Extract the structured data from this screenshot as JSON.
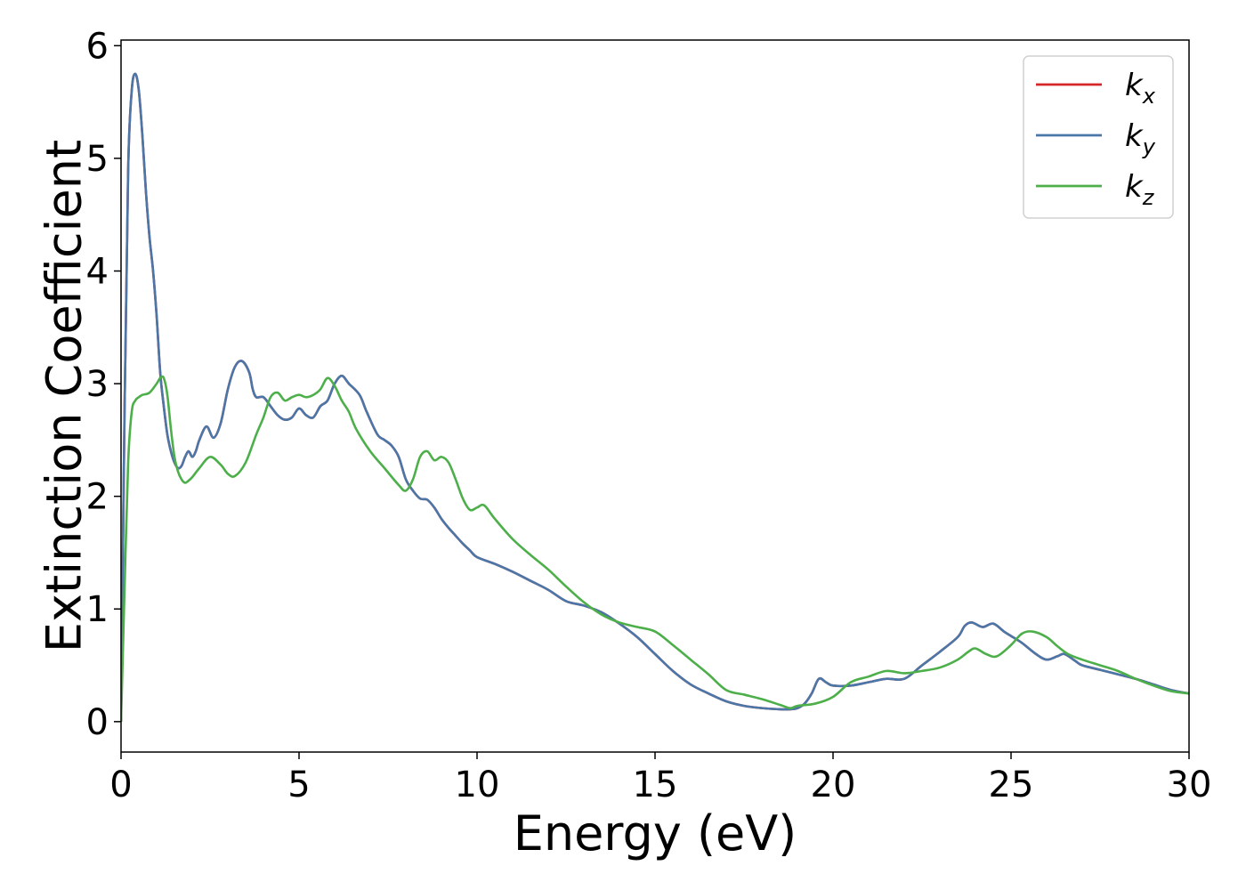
{
  "chart_data": {
    "type": "line",
    "xlabel": "Energy (eV)",
    "ylabel": "Extinction Coefficient",
    "xlim": [
      0,
      30
    ],
    "ylim": [
      -0.27,
      6.05
    ],
    "xticks": [
      0,
      5,
      10,
      15,
      20,
      25,
      30
    ],
    "yticks": [
      0,
      1,
      2,
      3,
      4,
      5,
      6
    ],
    "grid": false,
    "legend": "top-right",
    "series": [
      {
        "name": "kx",
        "label_base": "k",
        "label_sub": "x",
        "color": "#d62728",
        "x": [
          0,
          0.1,
          0.2,
          0.3,
          0.4,
          0.5,
          0.6,
          0.7,
          0.8,
          0.9,
          1.0,
          1.1,
          1.2,
          1.3,
          1.4,
          1.5,
          1.6,
          1.7,
          1.8,
          1.9,
          2.0,
          2.1,
          2.2,
          2.4,
          2.6,
          2.8,
          3.0,
          3.2,
          3.4,
          3.6,
          3.7,
          3.8,
          4.0,
          4.2,
          4.4,
          4.6,
          4.8,
          5.0,
          5.2,
          5.4,
          5.6,
          5.8,
          6.0,
          6.2,
          6.4,
          6.7,
          6.9,
          7.2,
          7.4,
          7.6,
          7.8,
          8.0,
          8.2,
          8.4,
          8.6,
          8.8,
          9.0,
          9.2,
          9.4,
          9.6,
          9.8,
          10.0,
          10.5,
          11.0,
          11.5,
          12.0,
          12.5,
          13.0,
          13.5,
          14.0,
          14.5,
          15.0,
          15.5,
          16.0,
          16.5,
          17.0,
          17.5,
          18.0,
          18.5,
          18.8,
          19.0,
          19.2,
          19.4,
          19.6,
          19.8,
          20.0,
          20.5,
          21.0,
          21.5,
          22.0,
          22.5,
          23.0,
          23.5,
          23.7,
          23.9,
          24.2,
          24.5,
          24.8,
          25.0,
          25.3,
          25.7,
          26.0,
          26.3,
          26.5,
          26.8,
          27.0,
          27.5,
          28.0,
          28.5,
          29.0,
          29.5,
          30.0
        ],
        "values": [
          0.0,
          2.8,
          4.9,
          5.6,
          5.75,
          5.6,
          5.2,
          4.7,
          4.3,
          4.0,
          3.6,
          3.1,
          2.8,
          2.55,
          2.4,
          2.3,
          2.25,
          2.27,
          2.35,
          2.4,
          2.35,
          2.4,
          2.5,
          2.62,
          2.52,
          2.65,
          2.95,
          3.15,
          3.2,
          3.1,
          2.95,
          2.88,
          2.88,
          2.8,
          2.72,
          2.68,
          2.7,
          2.78,
          2.72,
          2.7,
          2.8,
          2.85,
          3.0,
          3.07,
          3.0,
          2.9,
          2.75,
          2.55,
          2.5,
          2.45,
          2.35,
          2.15,
          2.05,
          1.98,
          1.97,
          1.9,
          1.8,
          1.72,
          1.65,
          1.58,
          1.52,
          1.46,
          1.4,
          1.33,
          1.25,
          1.17,
          1.07,
          1.03,
          0.97,
          0.87,
          0.75,
          0.6,
          0.45,
          0.33,
          0.25,
          0.18,
          0.14,
          0.12,
          0.11,
          0.11,
          0.12,
          0.16,
          0.25,
          0.38,
          0.35,
          0.32,
          0.32,
          0.35,
          0.38,
          0.38,
          0.5,
          0.62,
          0.75,
          0.85,
          0.88,
          0.84,
          0.87,
          0.8,
          0.76,
          0.7,
          0.6,
          0.55,
          0.58,
          0.6,
          0.54,
          0.5,
          0.46,
          0.42,
          0.38,
          0.33,
          0.28,
          0.25
        ]
      },
      {
        "name": "ky",
        "label_base": "k",
        "label_sub": "y",
        "color": "#4a76a8",
        "x": [
          0,
          0.1,
          0.2,
          0.3,
          0.4,
          0.5,
          0.6,
          0.7,
          0.8,
          0.9,
          1.0,
          1.1,
          1.2,
          1.3,
          1.4,
          1.5,
          1.6,
          1.7,
          1.8,
          1.9,
          2.0,
          2.1,
          2.2,
          2.4,
          2.6,
          2.8,
          3.0,
          3.2,
          3.4,
          3.6,
          3.7,
          3.8,
          4.0,
          4.2,
          4.4,
          4.6,
          4.8,
          5.0,
          5.2,
          5.4,
          5.6,
          5.8,
          6.0,
          6.2,
          6.4,
          6.7,
          6.9,
          7.2,
          7.4,
          7.6,
          7.8,
          8.0,
          8.2,
          8.4,
          8.6,
          8.8,
          9.0,
          9.2,
          9.4,
          9.6,
          9.8,
          10.0,
          10.5,
          11.0,
          11.5,
          12.0,
          12.5,
          13.0,
          13.5,
          14.0,
          14.5,
          15.0,
          15.5,
          16.0,
          16.5,
          17.0,
          17.5,
          18.0,
          18.5,
          18.8,
          19.0,
          19.2,
          19.4,
          19.6,
          19.8,
          20.0,
          20.5,
          21.0,
          21.5,
          22.0,
          22.5,
          23.0,
          23.5,
          23.7,
          23.9,
          24.2,
          24.5,
          24.8,
          25.0,
          25.3,
          25.7,
          26.0,
          26.3,
          26.5,
          26.8,
          27.0,
          27.5,
          28.0,
          28.5,
          29.0,
          29.5,
          30.0
        ],
        "values": [
          0.0,
          2.8,
          4.9,
          5.6,
          5.75,
          5.6,
          5.2,
          4.7,
          4.3,
          4.0,
          3.6,
          3.1,
          2.8,
          2.55,
          2.4,
          2.3,
          2.25,
          2.27,
          2.35,
          2.4,
          2.35,
          2.4,
          2.5,
          2.62,
          2.52,
          2.65,
          2.95,
          3.15,
          3.2,
          3.1,
          2.95,
          2.88,
          2.88,
          2.8,
          2.72,
          2.68,
          2.7,
          2.78,
          2.72,
          2.7,
          2.8,
          2.85,
          3.0,
          3.07,
          3.0,
          2.9,
          2.75,
          2.55,
          2.5,
          2.45,
          2.35,
          2.15,
          2.05,
          1.98,
          1.97,
          1.9,
          1.8,
          1.72,
          1.65,
          1.58,
          1.52,
          1.46,
          1.4,
          1.33,
          1.25,
          1.17,
          1.07,
          1.03,
          0.97,
          0.87,
          0.75,
          0.6,
          0.45,
          0.33,
          0.25,
          0.18,
          0.14,
          0.12,
          0.11,
          0.11,
          0.12,
          0.16,
          0.25,
          0.38,
          0.35,
          0.32,
          0.32,
          0.35,
          0.38,
          0.38,
          0.5,
          0.62,
          0.75,
          0.85,
          0.88,
          0.84,
          0.87,
          0.8,
          0.76,
          0.7,
          0.6,
          0.55,
          0.58,
          0.6,
          0.54,
          0.5,
          0.46,
          0.42,
          0.38,
          0.33,
          0.28,
          0.25
        ]
      },
      {
        "name": "kz",
        "label_base": "k",
        "label_sub": "z",
        "color": "#4daf4a",
        "x": [
          0,
          0.1,
          0.2,
          0.3,
          0.4,
          0.5,
          0.6,
          0.8,
          1.0,
          1.1,
          1.2,
          1.3,
          1.4,
          1.5,
          1.6,
          1.7,
          1.8,
          1.9,
          2.0,
          2.2,
          2.5,
          2.8,
          3.0,
          3.2,
          3.5,
          3.8,
          4.0,
          4.2,
          4.4,
          4.6,
          4.8,
          5.0,
          5.2,
          5.4,
          5.6,
          5.8,
          6.0,
          6.2,
          6.4,
          6.6,
          7.0,
          7.4,
          7.8,
          8.0,
          8.2,
          8.4,
          8.6,
          8.8,
          9.0,
          9.2,
          9.4,
          9.6,
          9.8,
          10.0,
          10.2,
          10.5,
          11.0,
          11.5,
          12.0,
          12.5,
          13.0,
          13.5,
          14.0,
          14.5,
          15.0,
          15.5,
          16.0,
          16.5,
          17.0,
          17.5,
          18.0,
          18.5,
          18.8,
          19.0,
          19.5,
          20.0,
          20.5,
          21.0,
          21.5,
          22.0,
          22.5,
          23.0,
          23.5,
          23.8,
          24.0,
          24.3,
          24.6,
          25.0,
          25.3,
          25.6,
          26.0,
          26.3,
          26.6,
          27.0,
          27.5,
          28.0,
          28.5,
          29.0,
          29.5,
          30.0
        ],
        "values": [
          0.0,
          1.2,
          2.3,
          2.75,
          2.85,
          2.88,
          2.9,
          2.92,
          3.0,
          3.05,
          3.05,
          2.9,
          2.6,
          2.35,
          2.22,
          2.15,
          2.12,
          2.14,
          2.17,
          2.25,
          2.35,
          2.28,
          2.2,
          2.18,
          2.3,
          2.55,
          2.7,
          2.88,
          2.92,
          2.85,
          2.88,
          2.9,
          2.88,
          2.9,
          2.95,
          3.05,
          2.98,
          2.85,
          2.75,
          2.6,
          2.4,
          2.25,
          2.1,
          2.05,
          2.15,
          2.35,
          2.4,
          2.32,
          2.35,
          2.3,
          2.15,
          1.98,
          1.88,
          1.9,
          1.92,
          1.8,
          1.62,
          1.48,
          1.35,
          1.2,
          1.06,
          0.95,
          0.88,
          0.84,
          0.8,
          0.68,
          0.55,
          0.42,
          0.28,
          0.24,
          0.2,
          0.15,
          0.12,
          0.14,
          0.16,
          0.22,
          0.35,
          0.4,
          0.45,
          0.43,
          0.45,
          0.48,
          0.55,
          0.62,
          0.65,
          0.6,
          0.58,
          0.68,
          0.78,
          0.8,
          0.75,
          0.67,
          0.6,
          0.55,
          0.5,
          0.45,
          0.38,
          0.32,
          0.27,
          0.25
        ]
      }
    ]
  }
}
